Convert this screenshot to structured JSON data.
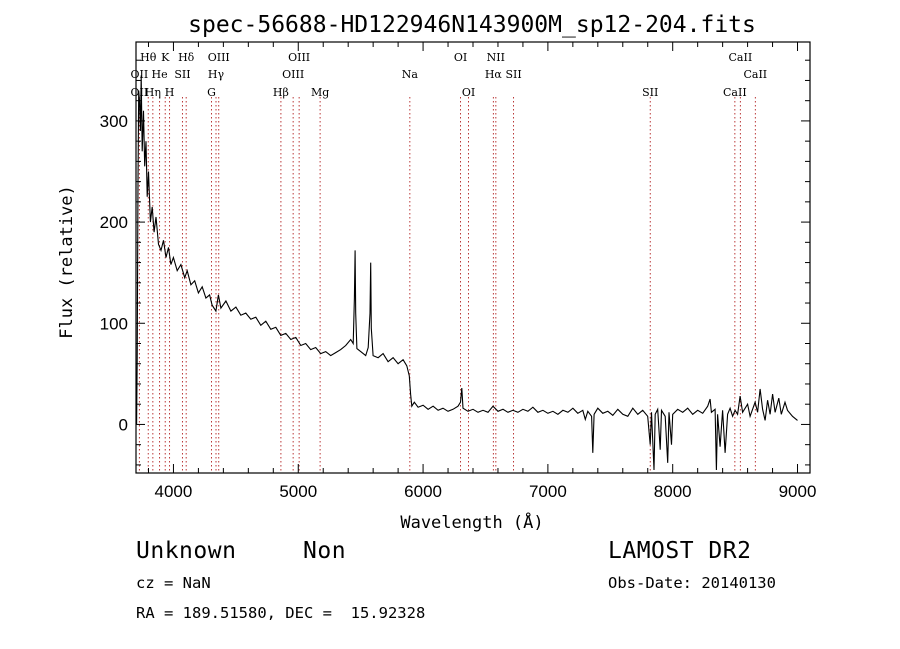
{
  "chart_data": {
    "type": "line",
    "title": "spec-56688-HD122946N143900M_sp12-204.fits",
    "xlabel": "Wavelength (Å)",
    "ylabel": "Flux (relative)",
    "xlim": [
      3700,
      9100
    ],
    "ylim": [
      -48,
      378
    ],
    "xticks": [
      4000,
      5000,
      6000,
      7000,
      8000,
      9000
    ],
    "yticks": [
      0,
      100,
      200,
      300
    ],
    "x_minor_step": 200,
    "y_minor_step": 20,
    "line_color": "#000000",
    "marker_color": "#b22222",
    "spectrum": [
      [
        3705,
        0
      ],
      [
        3710,
        65
      ],
      [
        3716,
        240
      ],
      [
        3722,
        330
      ],
      [
        3728,
        320
      ],
      [
        3735,
        290
      ],
      [
        3742,
        345
      ],
      [
        3750,
        270
      ],
      [
        3760,
        310
      ],
      [
        3770,
        255
      ],
      [
        3780,
        280
      ],
      [
        3790,
        225
      ],
      [
        3800,
        250
      ],
      [
        3815,
        200
      ],
      [
        3830,
        215
      ],
      [
        3845,
        190
      ],
      [
        3860,
        205
      ],
      [
        3880,
        178
      ],
      [
        3900,
        172
      ],
      [
        3920,
        182
      ],
      [
        3940,
        165
      ],
      [
        3960,
        175
      ],
      [
        3980,
        158
      ],
      [
        4000,
        165
      ],
      [
        4030,
        152
      ],
      [
        4060,
        158
      ],
      [
        4090,
        145
      ],
      [
        4110,
        152
      ],
      [
        4140,
        138
      ],
      [
        4170,
        142
      ],
      [
        4200,
        130
      ],
      [
        4230,
        136
      ],
      [
        4260,
        125
      ],
      [
        4290,
        128
      ],
      [
        4310,
        118
      ],
      [
        4340,
        112
      ],
      [
        4360,
        128
      ],
      [
        4380,
        115
      ],
      [
        4420,
        122
      ],
      [
        4460,
        112
      ],
      [
        4500,
        116
      ],
      [
        4540,
        108
      ],
      [
        4580,
        110
      ],
      [
        4620,
        104
      ],
      [
        4660,
        106
      ],
      [
        4700,
        98
      ],
      [
        4740,
        102
      ],
      [
        4780,
        94
      ],
      [
        4820,
        96
      ],
      [
        4860,
        88
      ],
      [
        4900,
        90
      ],
      [
        4940,
        84
      ],
      [
        4980,
        86
      ],
      [
        5020,
        78
      ],
      [
        5060,
        80
      ],
      [
        5100,
        74
      ],
      [
        5140,
        76
      ],
      [
        5180,
        70
      ],
      [
        5220,
        72
      ],
      [
        5260,
        68
      ],
      [
        5300,
        71
      ],
      [
        5340,
        74
      ],
      [
        5380,
        78
      ],
      [
        5420,
        84
      ],
      [
        5440,
        80
      ],
      [
        5450,
        125
      ],
      [
        5455,
        172
      ],
      [
        5460,
        110
      ],
      [
        5470,
        75
      ],
      [
        5500,
        72
      ],
      [
        5540,
        68
      ],
      [
        5560,
        76
      ],
      [
        5575,
        110
      ],
      [
        5580,
        160
      ],
      [
        5585,
        95
      ],
      [
        5600,
        68
      ],
      [
        5640,
        66
      ],
      [
        5680,
        70
      ],
      [
        5720,
        62
      ],
      [
        5760,
        66
      ],
      [
        5800,
        60
      ],
      [
        5840,
        64
      ],
      [
        5870,
        58
      ],
      [
        5890,
        48
      ],
      [
        5900,
        30
      ],
      [
        5910,
        18
      ],
      [
        5930,
        22
      ],
      [
        5960,
        17
      ],
      [
        6000,
        19
      ],
      [
        6040,
        15
      ],
      [
        6080,
        18
      ],
      [
        6120,
        14
      ],
      [
        6160,
        16
      ],
      [
        6200,
        13
      ],
      [
        6240,
        15
      ],
      [
        6280,
        18
      ],
      [
        6300,
        22
      ],
      [
        6310,
        36
      ],
      [
        6320,
        16
      ],
      [
        6360,
        13
      ],
      [
        6400,
        15
      ],
      [
        6440,
        12
      ],
      [
        6480,
        14
      ],
      [
        6520,
        12
      ],
      [
        6560,
        18
      ],
      [
        6600,
        13
      ],
      [
        6640,
        15
      ],
      [
        6680,
        12
      ],
      [
        6720,
        14
      ],
      [
        6760,
        12
      ],
      [
        6800,
        15
      ],
      [
        6840,
        13
      ],
      [
        6880,
        17
      ],
      [
        6920,
        12
      ],
      [
        6960,
        14
      ],
      [
        7000,
        11
      ],
      [
        7040,
        13
      ],
      [
        7080,
        10
      ],
      [
        7120,
        14
      ],
      [
        7160,
        12
      ],
      [
        7200,
        16
      ],
      [
        7240,
        11
      ],
      [
        7280,
        14
      ],
      [
        7300,
        5
      ],
      [
        7320,
        13
      ],
      [
        7350,
        8
      ],
      [
        7360,
        -28
      ],
      [
        7370,
        10
      ],
      [
        7400,
        16
      ],
      [
        7440,
        11
      ],
      [
        7480,
        13
      ],
      [
        7520,
        9
      ],
      [
        7560,
        15
      ],
      [
        7600,
        10
      ],
      [
        7640,
        8
      ],
      [
        7680,
        16
      ],
      [
        7720,
        10
      ],
      [
        7760,
        14
      ],
      [
        7800,
        8
      ],
      [
        7820,
        -20
      ],
      [
        7830,
        12
      ],
      [
        7850,
        -45
      ],
      [
        7860,
        10
      ],
      [
        7880,
        15
      ],
      [
        7900,
        -25
      ],
      [
        7910,
        14
      ],
      [
        7940,
        8
      ],
      [
        7960,
        -38
      ],
      [
        7970,
        12
      ],
      [
        7990,
        -20
      ],
      [
        8000,
        10
      ],
      [
        8040,
        15
      ],
      [
        8080,
        12
      ],
      [
        8120,
        16
      ],
      [
        8160,
        10
      ],
      [
        8200,
        14
      ],
      [
        8240,
        11
      ],
      [
        8280,
        18
      ],
      [
        8300,
        25
      ],
      [
        8310,
        12
      ],
      [
        8340,
        15
      ],
      [
        8350,
        -45
      ],
      [
        8360,
        10
      ],
      [
        8380,
        -22
      ],
      [
        8400,
        14
      ],
      [
        8420,
        -28
      ],
      [
        8440,
        10
      ],
      [
        8460,
        16
      ],
      [
        8480,
        8
      ],
      [
        8500,
        14
      ],
      [
        8520,
        10
      ],
      [
        8540,
        28
      ],
      [
        8560,
        12
      ],
      [
        8600,
        20
      ],
      [
        8620,
        8
      ],
      [
        8660,
        22
      ],
      [
        8680,
        12
      ],
      [
        8700,
        35
      ],
      [
        8720,
        15
      ],
      [
        8740,
        4
      ],
      [
        8760,
        24
      ],
      [
        8780,
        10
      ],
      [
        8800,
        30
      ],
      [
        8820,
        12
      ],
      [
        8850,
        26
      ],
      [
        8870,
        10
      ],
      [
        8900,
        22
      ],
      [
        8920,
        14
      ],
      [
        8960,
        8
      ],
      [
        9000,
        4
      ]
    ],
    "line_markers": [
      {
        "label": "Hθ",
        "wavelength": 3798,
        "row": 1
      },
      {
        "label": "OII",
        "wavelength": 3727,
        "row": 2
      },
      {
        "label": "OII",
        "wavelength": 3727,
        "row": 3
      },
      {
        "label": "He",
        "wavelength": 3889,
        "row": 2
      },
      {
        "label": "Hη",
        "wavelength": 3835,
        "row": 3
      },
      {
        "label": "K",
        "wavelength": 3934,
        "row": 1
      },
      {
        "label": "H",
        "wavelength": 3969,
        "row": 3
      },
      {
        "label": "SII",
        "wavelength": 4072,
        "row": 2
      },
      {
        "label": "Hδ",
        "wavelength": 4102,
        "row": 1
      },
      {
        "label": "OIII",
        "wavelength": 4363,
        "row": 1
      },
      {
        "label": "Hγ",
        "wavelength": 4341,
        "row": 2
      },
      {
        "label": "G",
        "wavelength": 4305,
        "row": 3
      },
      {
        "label": "Hβ",
        "wavelength": 4861,
        "row": 3
      },
      {
        "label": "OIII",
        "wavelength": 5007,
        "row": 1
      },
      {
        "label": "OIII",
        "wavelength": 4959,
        "row": 2
      },
      {
        "label": "Mg",
        "wavelength": 5175,
        "row": 3
      },
      {
        "label": "Na",
        "wavelength": 5894,
        "row": 2
      },
      {
        "label": "OI",
        "wavelength": 6300,
        "row": 1
      },
      {
        "label": "OI",
        "wavelength": 6364,
        "row": 3
      },
      {
        "label": "NII",
        "wavelength": 6583,
        "row": 1
      },
      {
        "label": "Hα",
        "wavelength": 6563,
        "row": 2
      },
      {
        "label": "SII",
        "wavelength": 6725,
        "row": 2
      },
      {
        "label": "SII",
        "wavelength": 7820,
        "row": 3
      },
      {
        "label": "CaII",
        "wavelength": 8542,
        "row": 1
      },
      {
        "label": "CaII",
        "wavelength": 8662,
        "row": 2
      },
      {
        "label": "CaII",
        "wavelength": 8498,
        "row": 3
      }
    ]
  },
  "info": {
    "class_label": "Unknown",
    "subclass_label": "Non",
    "survey_label": "LAMOST DR2",
    "redshift_text": "cz = NaN",
    "obs_date_text": "Obs-Date: 20140130",
    "coords_text": "RA = 189.51580, DEC =  15.92328"
  }
}
